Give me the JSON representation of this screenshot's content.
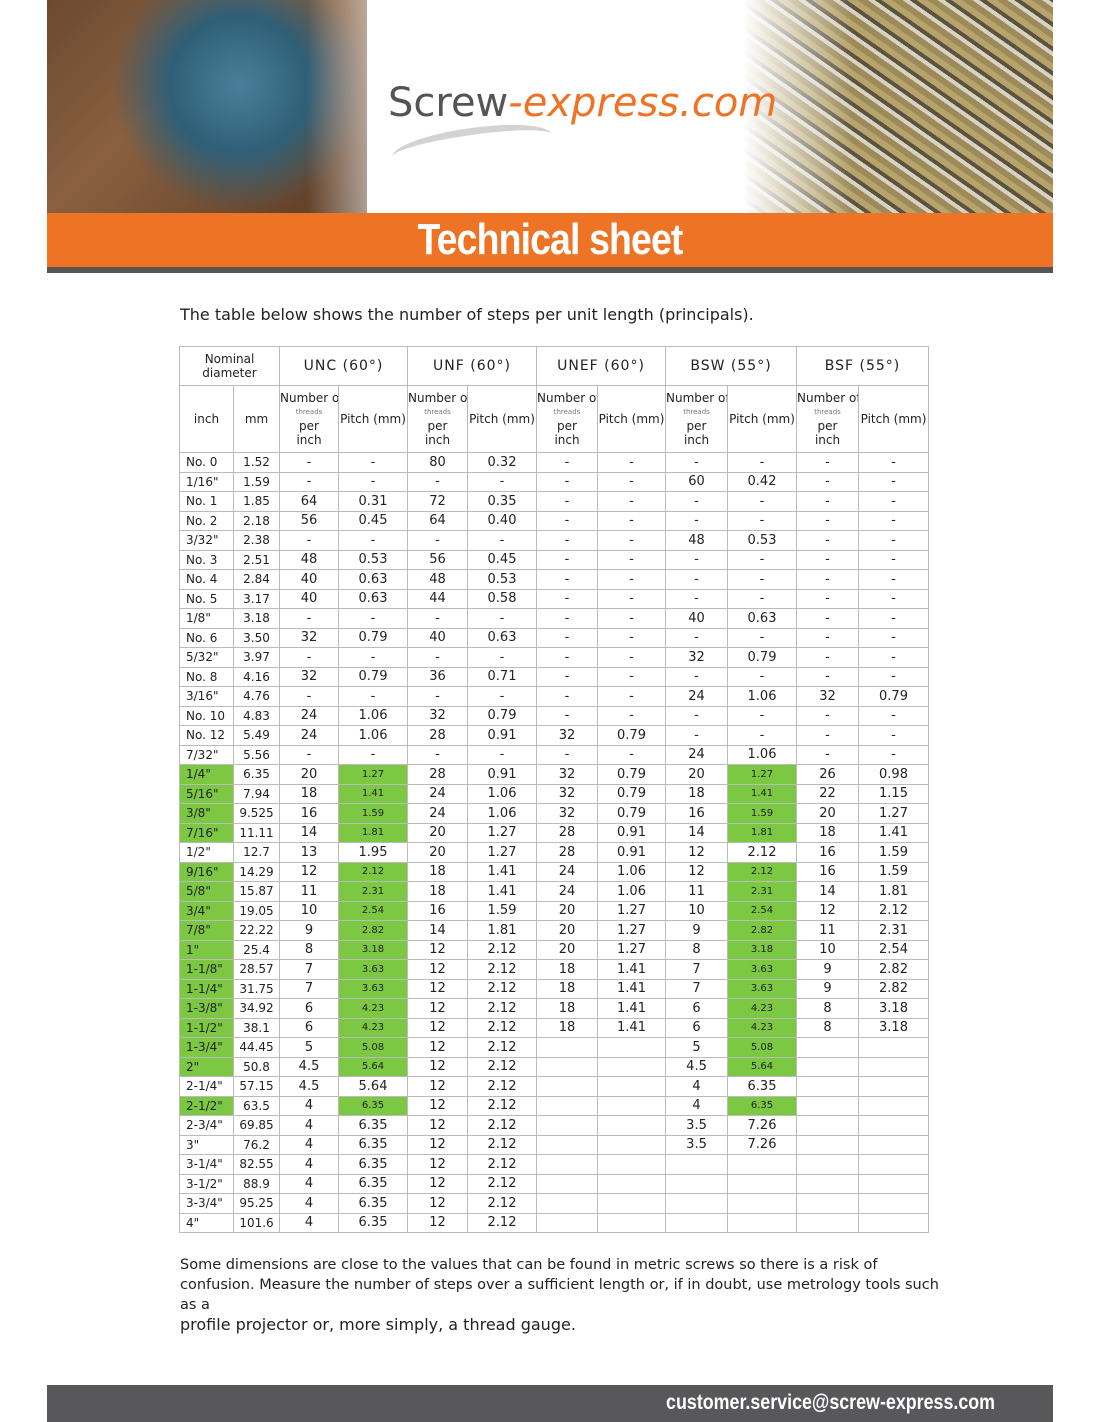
{
  "header": {
    "logo_part1": "Screw",
    "logo_part2": "-express.com",
    "banner_title": "Technical sheet",
    "brand_color": "#ee7324"
  },
  "intro": "The table below shows the number of steps per unit length (principals).",
  "table": {
    "nominal_label": "Nominal diameter",
    "groups": [
      "UNC (60°)",
      "UNF (60°)",
      "UNEF (60°)",
      "BSW (55°)",
      "BSF (55°)"
    ],
    "sub_inch": "inch",
    "sub_mm": "mm",
    "threads_top": "Number of",
    "threads_mid": "threads",
    "threads_per": "per",
    "threads_unit": "inch",
    "pitch_label": "Pitch (mm)",
    "highlight_color": "#7cc843",
    "rows": [
      {
        "c": [
          "No. 0",
          "1.52",
          "-",
          "-",
          "80",
          "0.32",
          "-",
          "-",
          "-",
          "-",
          "-",
          "-"
        ],
        "h": false
      },
      {
        "c": [
          "1/16\"",
          "1.59",
          "-",
          "-",
          "-",
          "-",
          "-",
          "-",
          "60",
          "0.42",
          "-",
          "-"
        ],
        "h": false
      },
      {
        "c": [
          "No. 1",
          "1.85",
          "64",
          "0.31",
          "72",
          "0.35",
          "-",
          "-",
          "-",
          "-",
          "-",
          "-"
        ],
        "h": false
      },
      {
        "c": [
          "No. 2",
          "2.18",
          "56",
          "0.45",
          "64",
          "0.40",
          "-",
          "-",
          "-",
          "-",
          "-",
          "-"
        ],
        "h": false
      },
      {
        "c": [
          "3/32\"",
          "2.38",
          "-",
          "-",
          "-",
          "-",
          "-",
          "-",
          "48",
          "0.53",
          "-",
          "-"
        ],
        "h": false
      },
      {
        "c": [
          "No. 3",
          "2.51",
          "48",
          "0.53",
          "56",
          "0.45",
          "-",
          "-",
          "-",
          "-",
          "-",
          "-"
        ],
        "h": false
      },
      {
        "c": [
          "No. 4",
          "2.84",
          "40",
          "0.63",
          "48",
          "0.53",
          "-",
          "-",
          "-",
          "-",
          "-",
          "-"
        ],
        "h": false
      },
      {
        "c": [
          "No. 5",
          "3.17",
          "40",
          "0.63",
          "44",
          "0.58",
          "-",
          "-",
          "-",
          "-",
          "-",
          "-"
        ],
        "h": false
      },
      {
        "c": [
          "1/8\"",
          "3.18",
          "-",
          "-",
          "-",
          "-",
          "-",
          "-",
          "40",
          "0.63",
          "-",
          "-"
        ],
        "h": false
      },
      {
        "c": [
          "No. 6",
          "3.50",
          "32",
          "0.79",
          "40",
          "0.63",
          "-",
          "-",
          "-",
          "-",
          "-",
          "-"
        ],
        "h": false
      },
      {
        "c": [
          "5/32\"",
          "3.97",
          "-",
          "-",
          "-",
          "-",
          "-",
          "-",
          "32",
          "0.79",
          "-",
          "-"
        ],
        "h": false
      },
      {
        "c": [
          "No. 8",
          "4.16",
          "32",
          "0.79",
          "36",
          "0.71",
          "-",
          "-",
          "-",
          "-",
          "-",
          "-"
        ],
        "h": false
      },
      {
        "c": [
          "3/16\"",
          "4.76",
          "-",
          "-",
          "-",
          "-",
          "-",
          "-",
          "24",
          "1.06",
          "32",
          "0.79"
        ],
        "h": false
      },
      {
        "c": [
          "No. 10",
          "4.83",
          "24",
          "1.06",
          "32",
          "0.79",
          "-",
          "-",
          "-",
          "-",
          "-",
          "-"
        ],
        "h": false
      },
      {
        "c": [
          "No. 12",
          "5.49",
          "24",
          "1.06",
          "28",
          "0.91",
          "32",
          "0.79",
          "-",
          "-",
          "-",
          "-"
        ],
        "h": false
      },
      {
        "c": [
          "7/32\"",
          "5.56",
          "-",
          "-",
          "-",
          "-",
          "-",
          "-",
          "24",
          "1.06",
          "-",
          "-"
        ],
        "h": false
      },
      {
        "c": [
          "1/4\"",
          "6.35",
          "20",
          "1.27",
          "28",
          "0.91",
          "32",
          "0.79",
          "20",
          "1.27",
          "26",
          "0.98"
        ],
        "h": true
      },
      {
        "c": [
          "5/16\"",
          "7.94",
          "18",
          "1.41",
          "24",
          "1.06",
          "32",
          "0.79",
          "18",
          "1.41",
          "22",
          "1.15"
        ],
        "h": true
      },
      {
        "c": [
          "3/8\"",
          "9.525",
          "16",
          "1.59",
          "24",
          "1.06",
          "32",
          "0.79",
          "16",
          "1.59",
          "20",
          "1.27"
        ],
        "h": true
      },
      {
        "c": [
          "7/16\"",
          "11.11",
          "14",
          "1.81",
          "20",
          "1.27",
          "28",
          "0.91",
          "14",
          "1.81",
          "18",
          "1.41"
        ],
        "h": true
      },
      {
        "c": [
          "1/2\"",
          "12.7",
          "13",
          "1.95",
          "20",
          "1.27",
          "28",
          "0.91",
          "12",
          "2.12",
          "16",
          "1.59"
        ],
        "h": false
      },
      {
        "c": [
          "9/16\"",
          "14.29",
          "12",
          "2.12",
          "18",
          "1.41",
          "24",
          "1.06",
          "12",
          "2.12",
          "16",
          "1.59"
        ],
        "h": true
      },
      {
        "c": [
          "5/8\"",
          "15.87",
          "11",
          "2.31",
          "18",
          "1.41",
          "24",
          "1.06",
          "11",
          "2.31",
          "14",
          "1.81"
        ],
        "h": true
      },
      {
        "c": [
          "3/4\"",
          "19.05",
          "10",
          "2.54",
          "16",
          "1.59",
          "20",
          "1.27",
          "10",
          "2.54",
          "12",
          "2.12"
        ],
        "h": true
      },
      {
        "c": [
          "7/8\"",
          "22.22",
          "9",
          "2.82",
          "14",
          "1.81",
          "20",
          "1.27",
          "9",
          "2.82",
          "11",
          "2.31"
        ],
        "h": true
      },
      {
        "c": [
          "1\"",
          "25.4",
          "8",
          "3.18",
          "12",
          "2.12",
          "20",
          "1.27",
          "8",
          "3.18",
          "10",
          "2.54"
        ],
        "h": true
      },
      {
        "c": [
          "1-1/8\"",
          "28.57",
          "7",
          "3.63",
          "12",
          "2.12",
          "18",
          "1.41",
          "7",
          "3.63",
          "9",
          "2.82"
        ],
        "h": true
      },
      {
        "c": [
          "1-1/4\"",
          "31.75",
          "7",
          "3.63",
          "12",
          "2.12",
          "18",
          "1.41",
          "7",
          "3.63",
          "9",
          "2.82"
        ],
        "h": true
      },
      {
        "c": [
          "1-3/8\"",
          "34.92",
          "6",
          "4.23",
          "12",
          "2.12",
          "18",
          "1.41",
          "6",
          "4.23",
          "8",
          "3.18"
        ],
        "h": true
      },
      {
        "c": [
          "1-1/2\"",
          "38.1",
          "6",
          "4.23",
          "12",
          "2.12",
          "18",
          "1.41",
          "6",
          "4.23",
          "8",
          "3.18"
        ],
        "h": true
      },
      {
        "c": [
          "1-3/4\"",
          "44.45",
          "5",
          "5.08",
          "12",
          "2.12",
          "",
          "",
          "5",
          "5.08",
          "",
          ""
        ],
        "h": true
      },
      {
        "c": [
          "2\"",
          "50.8",
          "4.5",
          "5.64",
          "12",
          "2.12",
          "",
          "",
          "4.5",
          "5.64",
          "",
          ""
        ],
        "h": true
      },
      {
        "c": [
          "2-1/4\"",
          "57.15",
          "4.5",
          "5.64",
          "12",
          "2.12",
          "",
          "",
          "4",
          "6.35",
          "",
          ""
        ],
        "h": false
      },
      {
        "c": [
          "2-1/2\"",
          "63.5",
          "4",
          "6.35",
          "12",
          "2.12",
          "",
          "",
          "4",
          "6.35",
          "",
          ""
        ],
        "h": true
      },
      {
        "c": [
          "2-3/4\"",
          "69.85",
          "4",
          "6.35",
          "12",
          "2.12",
          "",
          "",
          "3.5",
          "7.26",
          "",
          ""
        ],
        "h": false
      },
      {
        "c": [
          "3\"",
          "76.2",
          "4",
          "6.35",
          "12",
          "2.12",
          "",
          "",
          "3.5",
          "7.26",
          "",
          ""
        ],
        "h": false
      },
      {
        "c": [
          "3-1/4\"",
          "82.55",
          "4",
          "6.35",
          "12",
          "2.12",
          "",
          "",
          "",
          "",
          "",
          ""
        ],
        "h": false
      },
      {
        "c": [
          "3-1/2\"",
          "88.9",
          "4",
          "6.35",
          "12",
          "2.12",
          "",
          "",
          "",
          "",
          "",
          ""
        ],
        "h": false
      },
      {
        "c": [
          "3-3/4\"",
          "95.25",
          "4",
          "6.35",
          "12",
          "2.12",
          "",
          "",
          "",
          "",
          "",
          ""
        ],
        "h": false
      },
      {
        "c": [
          "4\"",
          "101.6",
          "4",
          "6.35",
          "12",
          "2.12",
          "",
          "",
          "",
          "",
          "",
          ""
        ],
        "h": false
      }
    ]
  },
  "outro_line1": "Some dimensions are close to the values that can be found in metric screws so there is a risk of",
  "outro_line2": "confusion. Measure the number of steps over a sufficient length or, if in doubt, use metrology tools such as a",
  "outro_line3": "profile projector or, more simply, a thread gauge.",
  "footer_email": "customer.service@screw-express.com"
}
